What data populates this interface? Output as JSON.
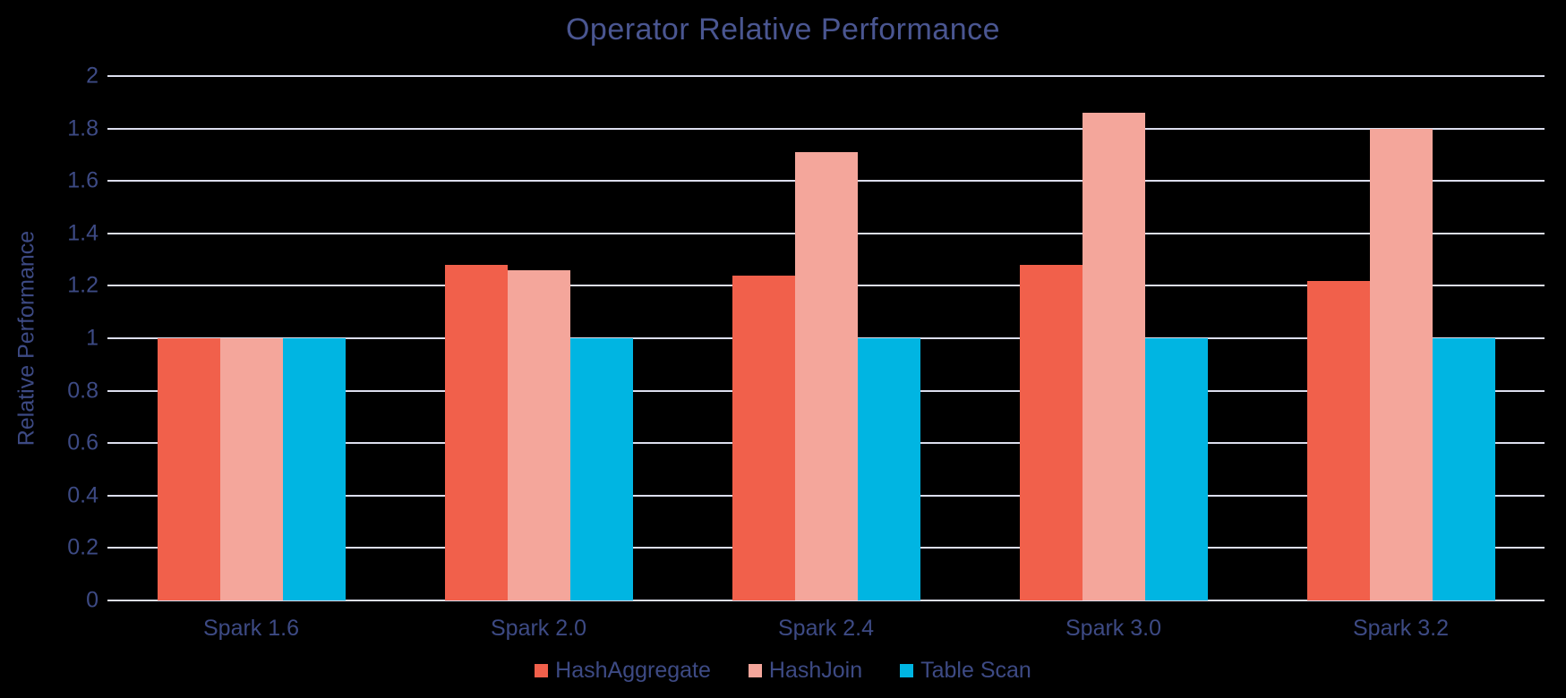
{
  "title": "Operator Relative Performance",
  "colors": {
    "background": "#000000",
    "title_text": "#4A5691",
    "axis_text": "#3D4A84",
    "gridline": "#DCDEEE"
  },
  "chart_data": {
    "type": "bar",
    "title": "Operator Relative Performance",
    "xlabel": "",
    "ylabel": "Relative Performance",
    "categories": [
      "Spark 1.6",
      "Spark 2.0",
      "Spark 2.4",
      "Spark 3.0",
      "Spark 3.2"
    ],
    "series": [
      {
        "name": "HashAggregate",
        "color": "#F1604B",
        "values": [
          1.0,
          1.28,
          1.24,
          1.28,
          1.22
        ]
      },
      {
        "name": "HashJoin",
        "color": "#F4A69B",
        "values": [
          1.0,
          1.26,
          1.71,
          1.86,
          1.8
        ]
      },
      {
        "name": "Table Scan",
        "color": "#00B5E2",
        "values": [
          1.0,
          1.0,
          1.0,
          1.0,
          1.0
        ]
      }
    ],
    "ylim": [
      0,
      2
    ],
    "ytick_step": 0.2,
    "yticks": [
      "0",
      "0.2",
      "0.4",
      "0.6",
      "0.8",
      "1",
      "1.2",
      "1.4",
      "1.6",
      "1.8",
      "2"
    ],
    "grid": true,
    "legend_position": "bottom"
  }
}
